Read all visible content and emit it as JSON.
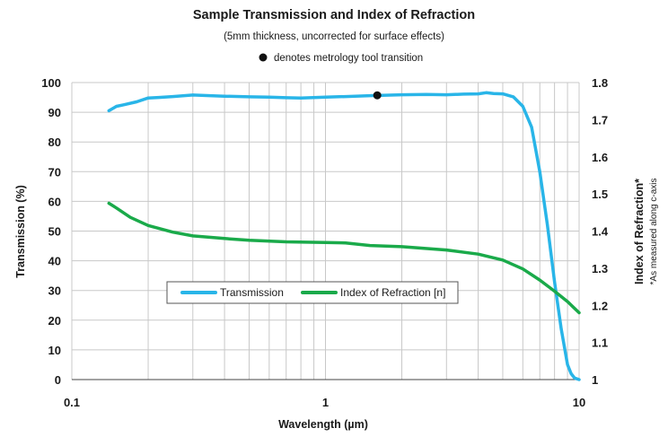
{
  "chart_data": {
    "type": "line",
    "title": "Sample Transmission and Index of Refraction",
    "subtitle": "(5mm thickness, uncorrected for surface effects)",
    "annotation": "denotes metrology tool transition",
    "xlabel": "Wavelength (µm)",
    "ylabel": "Transmission (%)",
    "y2label": "Index of Refraction*",
    "y2sublabel": "*As measured along c-axis",
    "x_scale": "log",
    "xlim": [
      0.1,
      10
    ],
    "ylim": [
      0,
      100
    ],
    "y2lim": [
      1,
      1.8
    ],
    "grid": "on",
    "legend_placement": "center",
    "x_ticks": [
      "0.1",
      "1",
      "10"
    ],
    "y_ticks": [
      "0",
      "10",
      "20",
      "30",
      "40",
      "50",
      "60",
      "70",
      "80",
      "90",
      "100"
    ],
    "y2_ticks": [
      "1",
      "1.1",
      "1.2",
      "1.3",
      "1.4",
      "1.5",
      "1.6",
      "1.7",
      "1.8"
    ],
    "marker_point": {
      "x": 1.6,
      "y": 95.7
    },
    "series": [
      {
        "name": "Transmission",
        "axis": "left",
        "color": "#29b5e8",
        "x": [
          0.14,
          0.15,
          0.16,
          0.18,
          0.2,
          0.22,
          0.25,
          0.3,
          0.35,
          0.4,
          0.5,
          0.6,
          0.7,
          0.8,
          1.0,
          1.2,
          1.5,
          2.0,
          2.5,
          3.0,
          3.5,
          4.0,
          4.3,
          4.6,
          5.0,
          5.5,
          6.0,
          6.5,
          7.0,
          7.5,
          8.0,
          8.5,
          9.0,
          9.3,
          9.6,
          10.0
        ],
        "values": [
          90.5,
          92,
          92.5,
          93.5,
          94.8,
          95,
          95.3,
          95.8,
          95.6,
          95.4,
          95.2,
          95.1,
          94.9,
          94.8,
          95.1,
          95.3,
          95.6,
          95.9,
          96,
          95.9,
          96.1,
          96.2,
          96.6,
          96.3,
          96.2,
          95.2,
          92,
          85,
          70,
          52,
          33,
          17,
          5,
          2,
          0.5,
          0
        ]
      },
      {
        "name": "Index of Refraction [n]",
        "axis": "right",
        "color": "#1aaa4a",
        "x": [
          0.14,
          0.15,
          0.17,
          0.2,
          0.25,
          0.3,
          0.4,
          0.5,
          0.7,
          1.0,
          1.2,
          1.5,
          2.0,
          3.0,
          4.0,
          5.0,
          6.0,
          7.0,
          8.0,
          9.0,
          10.0
        ],
        "values": [
          1.475,
          1.462,
          1.437,
          1.415,
          1.397,
          1.387,
          1.38,
          1.375,
          1.371,
          1.369,
          1.368,
          1.361,
          1.358,
          1.349,
          1.338,
          1.322,
          1.298,
          1.268,
          1.238,
          1.21,
          1.18
        ]
      }
    ]
  }
}
